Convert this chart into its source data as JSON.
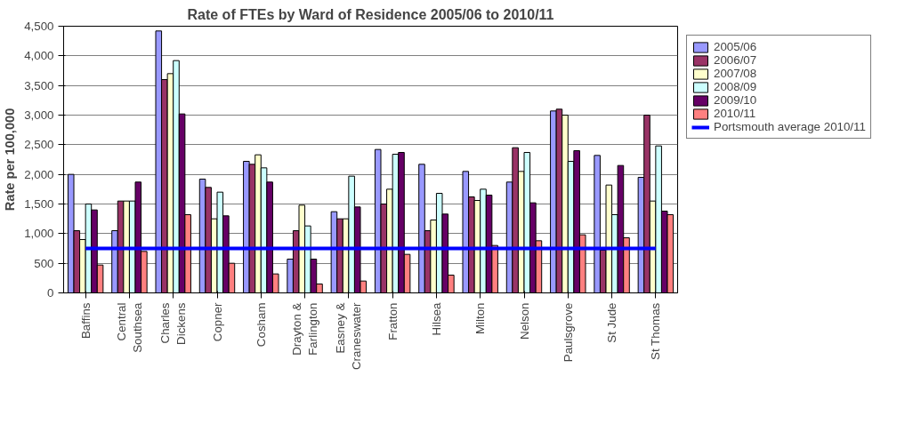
{
  "chart_data": {
    "type": "bar",
    "title": "Rate of FTEs by Ward of Residence 2005/06 to 2010/11",
    "ylabel": "Rate per 100,000",
    "categories": [
      "Baffins",
      "Central Southsea",
      "Charles Dickens",
      "Copner",
      "Cosham",
      "Drayton & Farlington",
      "Easney & Craneswater",
      "Fratton",
      "Hilsea",
      "Milton",
      "Nelson",
      "Paulsgrove",
      "St Jude",
      "St Thomas"
    ],
    "series": [
      {
        "name": "2005/06",
        "color": "#9999ff",
        "values": [
          2000,
          1050,
          4420,
          1920,
          2220,
          570,
          1370,
          2420,
          2170,
          2050,
          1870,
          3070,
          2320,
          1950
        ]
      },
      {
        "name": "2006/07",
        "color": "#993366",
        "values": [
          1050,
          1550,
          3600,
          1780,
          2170,
          1050,
          1250,
          1500,
          1050,
          1620,
          2450,
          3100,
          720,
          3000
        ]
      },
      {
        "name": "2007/08",
        "color": "#ffffcc",
        "values": [
          900,
          1550,
          3700,
          1250,
          2330,
          1480,
          1250,
          1750,
          1230,
          1560,
          2050,
          3000,
          1820,
          1550
        ]
      },
      {
        "name": "2008/09",
        "color": "#ccffff",
        "values": [
          1500,
          1550,
          3920,
          1700,
          2110,
          1130,
          1970,
          2340,
          1680,
          1750,
          2370,
          2220,
          1320,
          2480
        ]
      },
      {
        "name": "2009/10",
        "color": "#660066",
        "values": [
          1400,
          1870,
          3020,
          1300,
          1870,
          570,
          1450,
          2370,
          1330,
          1650,
          1520,
          2400,
          2150,
          1380
        ]
      },
      {
        "name": "2010/11",
        "color": "#ff8080",
        "values": [
          470,
          700,
          1320,
          500,
          320,
          150,
          200,
          650,
          300,
          800,
          880,
          980,
          930,
          1320
        ]
      },
      {
        "name": "Portsmouth average 2010/11",
        "type": "line",
        "color": "#0000ff",
        "values": [
          750,
          750,
          750,
          750,
          750,
          750,
          750,
          750,
          750,
          750,
          750,
          750,
          750,
          750
        ]
      }
    ],
    "ylim": [
      0,
      4500
    ],
    "yticks": [
      0,
      500,
      {
        "value": 1000,
        "label": "1,000"
      },
      {
        "value": 1500,
        "label": "1,500"
      },
      {
        "value": 2000,
        "label": "2,000"
      },
      {
        "value": 2500,
        "label": "2,500"
      },
      {
        "value": 3000,
        "label": "3,000"
      },
      {
        "value": 3500,
        "label": "3,500"
      },
      {
        "value": 4000,
        "label": "4,000"
      },
      {
        "value": 4500,
        "label": "4,500"
      }
    ],
    "grid": "y",
    "legend": "right"
  }
}
